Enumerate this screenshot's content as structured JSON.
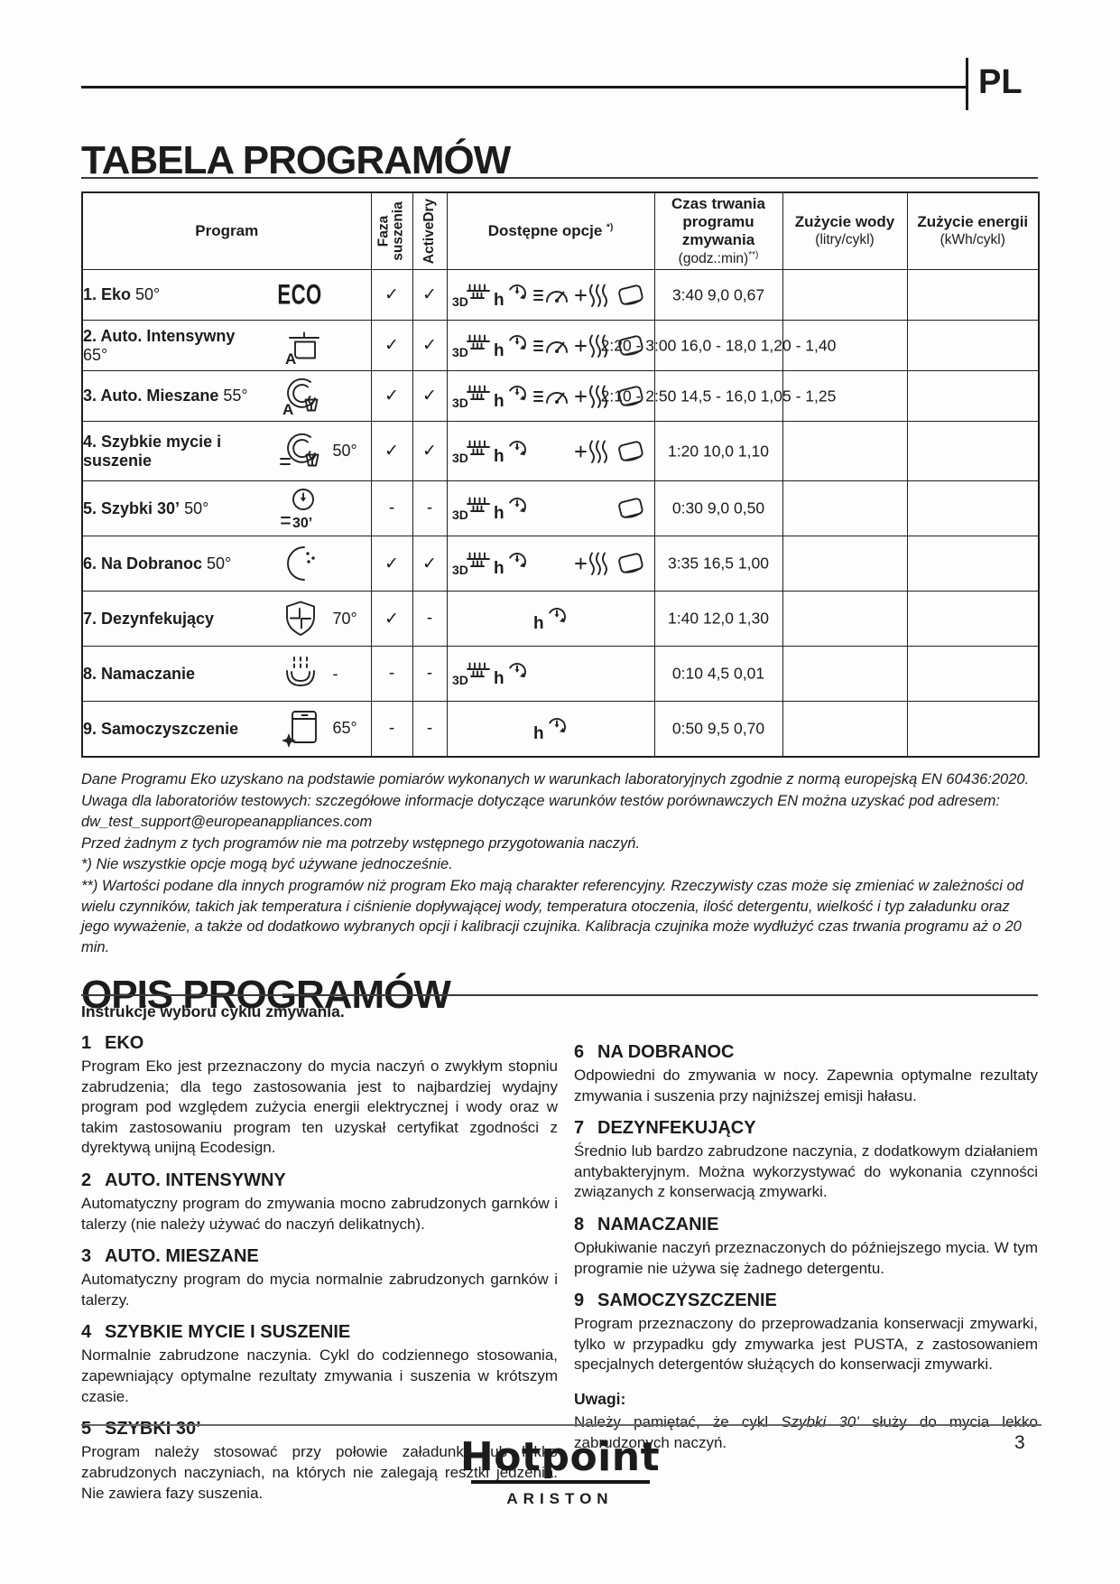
{
  "header": {
    "lang": "PL"
  },
  "programs_table": {
    "title": "TABELA PROGRAMÓW",
    "headers": {
      "program": "Program",
      "drying_phase": "Faza suszenia",
      "activedry": "ActiveDry",
      "options": "Dostępne opcje",
      "options_note": "*)",
      "duration_title": "Czas trwania programu zmywania",
      "duration_unit": "(godz.:min)",
      "duration_note": "**)",
      "water_title": "Zużycie wody",
      "water_unit": "(litry/cykl)",
      "energy_title": "Zużycie energii",
      "energy_unit": "(kWh/cykl)"
    },
    "rows": [
      {
        "num": "1.",
        "name": "Eko",
        "temp_inline": "50°",
        "icon": "eco-badge",
        "drying": "✓",
        "activedry": "✓",
        "options": [
          "3d-rack-icon",
          "delay-timer-icon",
          "gauge-icon",
          "steam-plus-icon",
          "tablet-icon"
        ],
        "values": {
          "display": "3:40 9,0 0,67",
          "duration": "3:40",
          "water": "9,0",
          "energy": "0,67"
        }
      },
      {
        "num": "2.",
        "name": "Auto. Intensywny",
        "temp_inline": "65°",
        "icon": "pot-a-icon",
        "drying": "✓",
        "activedry": "✓",
        "options": [
          "3d-rack-icon",
          "delay-timer-icon",
          "gauge-icon",
          "steam-plus-icon",
          "tablet-icon"
        ],
        "values": {
          "display": "2:20 - 3:00 16,0 - 18,0 1,20 - 1,40",
          "duration": "2:20 - 3:00",
          "water": "16,0 - 18,0",
          "energy": "1,20 - 1,40"
        }
      },
      {
        "num": "3.",
        "name": "Auto. Mieszane",
        "temp_inline": "55°",
        "icon": "auto-mixed-icon",
        "drying": "✓",
        "activedry": "✓",
        "options": [
          "3d-rack-icon",
          "delay-timer-icon",
          "gauge-icon",
          "steam-plus-icon",
          "tablet-icon"
        ],
        "values": {
          "display": "2:10 - 2:50 14,5 - 16,0 1,05 - 1,25",
          "duration": "2:10 - 2:50",
          "water": "14,5 - 16,0",
          "energy": "1,05 - 1,25"
        }
      },
      {
        "num": "4.",
        "name": "Szybkie mycie i suszenie",
        "temp_after": "50°",
        "icon": "quick-wash-dry-icon",
        "drying": "✓",
        "activedry": "✓",
        "options": [
          "3d-rack-icon",
          "delay-timer-icon",
          null,
          "steam-plus-icon",
          "tablet-icon"
        ],
        "values": {
          "display": "1:20 10,0 1,10",
          "duration": "1:20",
          "water": "10,0",
          "energy": "1,10"
        }
      },
      {
        "num": "5.",
        "name": "Szybki 30’",
        "temp_inline": "50°",
        "icon": "quick-30-icon",
        "drying": "-",
        "activedry": "-",
        "options": [
          "3d-rack-icon",
          "delay-timer-icon",
          null,
          null,
          "tablet-icon"
        ],
        "values": {
          "display": "0:30 9,0 0,50",
          "duration": "0:30",
          "water": "9,0",
          "energy": "0,50"
        }
      },
      {
        "num": "6.",
        "name": "Na Dobranoc",
        "temp_inline": "50°",
        "icon": "moon-icon",
        "drying": "✓",
        "activedry": "✓",
        "options": [
          "3d-rack-icon",
          "delay-timer-icon",
          null,
          "steam-plus-icon",
          "tablet-icon"
        ],
        "values": {
          "display": "3:35 16,5 1,00",
          "duration": "3:35",
          "water": "16,5",
          "energy": "1,00"
        }
      },
      {
        "num": "7.",
        "name": "Dezynfekujący",
        "temp_after": "70°",
        "icon": "shield-cross-icon",
        "drying": "✓",
        "activedry": "-",
        "options": [
          null,
          null,
          "delay-timer-icon",
          null,
          null
        ],
        "values": {
          "display": "1:40 12,0 1,30",
          "duration": "1:40",
          "water": "12,0",
          "energy": "1,30"
        }
      },
      {
        "num": "8.",
        "name": "Namaczanie",
        "temp_after": "-",
        "icon": "soak-icon",
        "drying": "-",
        "activedry": "-",
        "options": [
          "3d-rack-icon",
          "delay-timer-icon",
          null,
          null,
          null
        ],
        "values": {
          "display": "0:10 4,5 0,01",
          "duration": "0:10",
          "water": "4,5",
          "energy": "0,01"
        }
      },
      {
        "num": "9.",
        "name": "Samoczyszczenie",
        "temp_after": "65°",
        "icon": "self-clean-icon",
        "drying": "-",
        "activedry": "-",
        "options": [
          null,
          null,
          "delay-timer-icon",
          null,
          null
        ],
        "values": {
          "display": "0:50 9,5 0,70",
          "duration": "0:50",
          "water": "9,5",
          "energy": "0,70"
        }
      }
    ],
    "footnotes": [
      "Dane Programu Eko uzyskano na podstawie pomiarów wykonanych w warunkach laboratoryjnych zgodnie z normą europejską EN 60436:2020.",
      "Uwaga dla laboratoriów testowych: szczegółowe informacje dotyczące warunków testów porównawczych EN można uzyskać pod adresem:",
      "dw_test_support@europeanappliances.com",
      "Przed żadnym z tych programów nie ma potrzeby wstępnego przygotowania naczyń.",
      "*) Nie wszystkie opcje mogą być używane jednocześnie.",
      "**) Wartości podane dla innych programów niż program Eko mają charakter referencyjny. Rzeczywisty czas może się zmieniać w zależności od wielu czynników, takich jak temperatura i ciśnienie dopływającej wody, temperatura otoczenia, ilość detergentu, wielkość i typ załadunku oraz jego wyważenie, a także od dodatkowo wybranych opcji i kalibracji czujnika. Kalibracja czujnika może wydłużyć czas trwania programu aż o 20 min."
    ]
  },
  "descriptions": {
    "title": "OPIS PROGRAMÓW",
    "intro": "Instrukcje wyboru cyklu zmywania.",
    "left": [
      {
        "num": "1",
        "name": "EKO",
        "text": "Program Eko jest przeznaczony do mycia naczyń o zwykłym stopniu zabrudzenia; dla tego zastosowania jest to najbardziej wydajny program pod względem zużycia energii elektrycznej i wody oraz w takim zastosowaniu program ten uzyskał certyfikat zgodności z dyrektywą unijną Ecodesign."
      },
      {
        "num": "2",
        "name": "AUTO. INTENSYWNY",
        "text": "Automatyczny program do zmywania mocno zabrudzonych garnków i talerzy (nie należy używać do naczyń delikatnych)."
      },
      {
        "num": "3",
        "name": "AUTO. MIESZANE",
        "text": "Automatyczny program do mycia normalnie zabrudzonych garnków i talerzy."
      },
      {
        "num": "4",
        "name": "SZYBKIE MYCIE I SUSZENIE",
        "text": "Normalnie zabrudzone naczynia. Cykl do codziennego stosowania, zapewniający optymalne rezultaty zmywania i suszenia w krótszym czasie."
      },
      {
        "num": "5",
        "name": "SZYBKI 30’",
        "text": "Program należy stosować przy połowie załadunku lub lekko zabrudzonych naczyniach, na których nie zalegają resztki jedzenia. Nie zawiera fazy suszenia."
      }
    ],
    "right": [
      {
        "num": "6",
        "name": "NA DOBRANOC",
        "text": "Odpowiedni do zmywania w nocy. Zapewnia optymalne rezultaty zmywania i suszenia przy najniższej emisji hałasu."
      },
      {
        "num": "7",
        "name": "DEZYNFEKUJĄCY",
        "text": "Średnio lub bardzo zabrudzone naczynia, z dodatkowym działaniem antybakteryjnym. Można wykorzystywać do wykonania czynności związanych z konserwacją zmywarki."
      },
      {
        "num": "8",
        "name": "NAMACZANIE",
        "text": "Opłukiwanie naczyń przeznaczonych do późniejszego mycia. W tym programie nie używa się żadnego detergentu."
      },
      {
        "num": "9",
        "name": "SAMOCZYSZCZENIE",
        "text": "Program przeznaczony do przeprowadzania konserwacji zmywarki, tylko w przypadku gdy zmywarka jest PUSTA, z zastosowaniem specjalnych detergentów służących do konserwacji zmywarki."
      }
    ],
    "notes_label": "Uwagi:",
    "note_prefix": "Należy pamiętać, że cykl ",
    "note_italic": "Szybki 30’",
    "note_suffix": " służy do mycia lekko zabrudzonych naczyń."
  },
  "footer": {
    "brand": "Hotpoint",
    "sub_brand": "ARISTON",
    "page_number": "3"
  }
}
